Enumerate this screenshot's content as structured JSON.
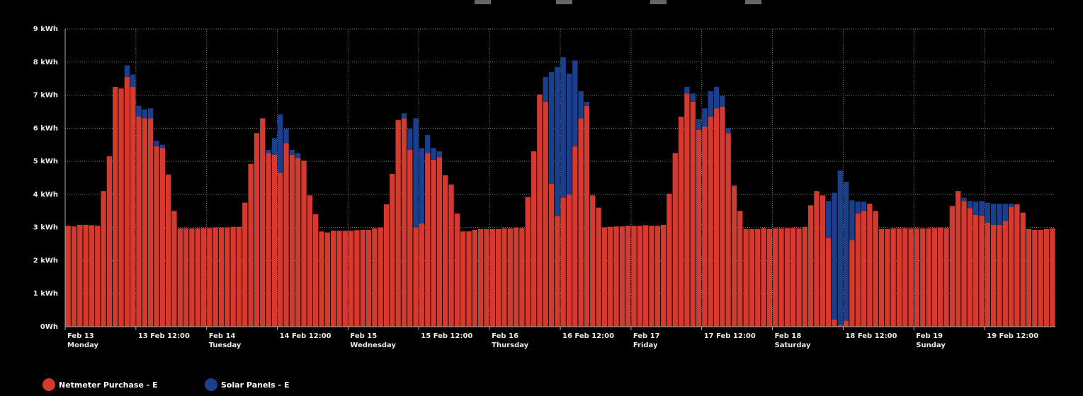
{
  "chart_data": {
    "type": "stacked_bar",
    "yticks": [
      {
        "value": 0,
        "label": "0Wh"
      },
      {
        "value": 1,
        "label": "1 kWh"
      },
      {
        "value": 2,
        "label": "2 kWh"
      },
      {
        "value": 3,
        "label": "3 kWh"
      },
      {
        "value": 4,
        "label": "4 kWh"
      },
      {
        "value": 5,
        "label": "5 kWh"
      },
      {
        "value": 6,
        "label": "6 kWh"
      },
      {
        "value": 7,
        "label": "7 kWh"
      },
      {
        "value": 8,
        "label": "8 kWh"
      },
      {
        "value": 9,
        "label": "9 kWh"
      }
    ],
    "ylim": [
      0,
      9
    ],
    "xlim": [
      0,
      168
    ],
    "xticks": [
      {
        "value": 0,
        "label": "Feb 13"
      },
      {
        "value": 12,
        "label": "13 Feb 12:00"
      },
      {
        "value": 24,
        "label": "Feb 14"
      },
      {
        "value": 36,
        "label": "14 Feb 12:00"
      },
      {
        "value": 48,
        "label": "Feb 15"
      },
      {
        "value": 60,
        "label": "15 Feb 12:00"
      },
      {
        "value": 72,
        "label": "Feb 16"
      },
      {
        "value": 84,
        "label": "16 Feb 12:00"
      },
      {
        "value": 96,
        "label": "Feb 17"
      },
      {
        "value": 108,
        "label": "17 Feb 12:00"
      },
      {
        "value": 120,
        "label": "Feb 18"
      },
      {
        "value": 132,
        "label": "18 Feb 12:00"
      },
      {
        "value": 144,
        "label": "Feb 19"
      },
      {
        "value": 156,
        "label": "19 Feb 12:00"
      }
    ],
    "weekdays": [
      "Monday",
      "Tuesday",
      "Wednesday",
      "Thursday",
      "Friday",
      "Saturday",
      "Sunday"
    ],
    "grid": true,
    "legend": "bottom-left",
    "series": [
      {
        "name": "Netmeter Purchase - E",
        "color": "#d63a2f",
        "values": [
          3.05,
          3.03,
          3.08,
          3.08,
          3.07,
          3.05,
          4.1,
          5.15,
          7.25,
          7.2,
          7.55,
          7.25,
          6.35,
          6.3,
          6.3,
          5.45,
          5.4,
          4.6,
          3.5,
          2.97,
          2.97,
          2.97,
          2.97,
          2.98,
          2.98,
          3.0,
          3.0,
          3.0,
          3.02,
          3.02,
          3.75,
          4.92,
          5.85,
          6.3,
          5.25,
          5.2,
          4.65,
          5.55,
          5.2,
          5.1,
          5.02,
          3.97,
          3.4,
          2.88,
          2.85,
          2.9,
          2.9,
          2.9,
          2.9,
          2.92,
          2.93,
          2.93,
          2.97,
          3.0,
          3.7,
          4.62,
          6.25,
          6.3,
          5.35,
          3.0,
          3.12,
          5.25,
          5.05,
          5.12,
          4.58,
          4.3,
          3.42,
          2.88,
          2.88,
          2.93,
          2.95,
          2.95,
          2.95,
          2.95,
          2.97,
          2.97,
          3.0,
          2.98,
          3.92,
          5.3,
          7.02,
          6.8,
          4.32,
          3.35,
          3.9,
          4.0,
          5.45,
          6.3,
          6.67,
          3.97,
          3.6,
          3.0,
          3.02,
          3.03,
          3.03,
          3.05,
          3.05,
          3.05,
          3.07,
          3.05,
          3.05,
          3.08,
          4.02,
          5.25,
          6.35,
          7.05,
          6.8,
          5.95,
          6.05,
          6.35,
          6.6,
          6.65,
          5.85,
          4.25,
          3.5,
          2.95,
          2.95,
          2.95,
          2.98,
          2.95,
          2.97,
          2.97,
          2.98,
          2.98,
          2.97,
          3.02,
          3.67,
          4.1,
          3.97,
          2.68,
          0.22,
          0.05,
          0.18,
          2.62,
          3.42,
          3.5,
          3.72,
          3.5,
          2.95,
          2.95,
          2.97,
          2.97,
          2.98,
          2.97,
          2.97,
          2.97,
          2.97,
          2.98,
          3.0,
          2.98,
          3.65,
          4.1,
          3.8,
          3.58,
          3.38,
          3.35,
          3.15,
          3.08,
          3.08,
          3.2,
          3.62,
          3.7,
          3.45,
          2.95,
          2.93,
          2.93,
          2.95,
          2.97
        ]
      },
      {
        "name": "Solar Panels - E",
        "color": "#1a3f8f",
        "values": [
          0,
          0,
          0,
          0,
          0,
          0,
          0,
          0,
          0,
          0,
          0.35,
          0.37,
          0.33,
          0.27,
          0.3,
          0.17,
          0.1,
          0,
          0,
          0,
          0,
          0,
          0,
          0,
          0,
          0,
          0,
          0,
          0,
          0,
          0,
          0,
          0,
          0,
          0.1,
          0.5,
          1.77,
          0.43,
          0.15,
          0.15,
          0,
          0,
          0,
          0,
          0,
          0,
          0,
          0,
          0,
          0,
          0,
          0,
          0,
          0,
          0,
          0,
          0,
          0.15,
          0.63,
          3.3,
          2.28,
          0.55,
          0.35,
          0.18,
          0,
          0,
          0,
          0,
          0,
          0,
          0,
          0,
          0,
          0,
          0,
          0,
          0,
          0,
          0,
          0,
          0,
          0.75,
          3.38,
          4.5,
          4.25,
          3.65,
          2.6,
          0.82,
          0.13,
          0,
          0,
          0,
          0,
          0,
          0,
          0,
          0,
          0,
          0,
          0,
          0,
          0,
          0,
          0,
          0,
          0.2,
          0.25,
          0.33,
          0.55,
          0.77,
          0.65,
          0.33,
          0.15,
          0.03,
          0,
          0,
          0,
          0,
          0,
          0,
          0,
          0,
          0,
          0,
          0,
          0,
          0,
          0,
          0,
          1.12,
          3.83,
          4.67,
          4.2,
          1.2,
          0.36,
          0.28,
          0,
          0,
          0,
          0,
          0,
          0,
          0,
          0,
          0,
          0,
          0,
          0,
          0,
          0,
          0,
          0,
          0.1,
          0.22,
          0.4,
          0.45,
          0.6,
          0.64,
          0.64,
          0.52,
          0.1,
          0,
          0,
          0,
          0,
          0,
          0,
          0
        ]
      }
    ]
  }
}
